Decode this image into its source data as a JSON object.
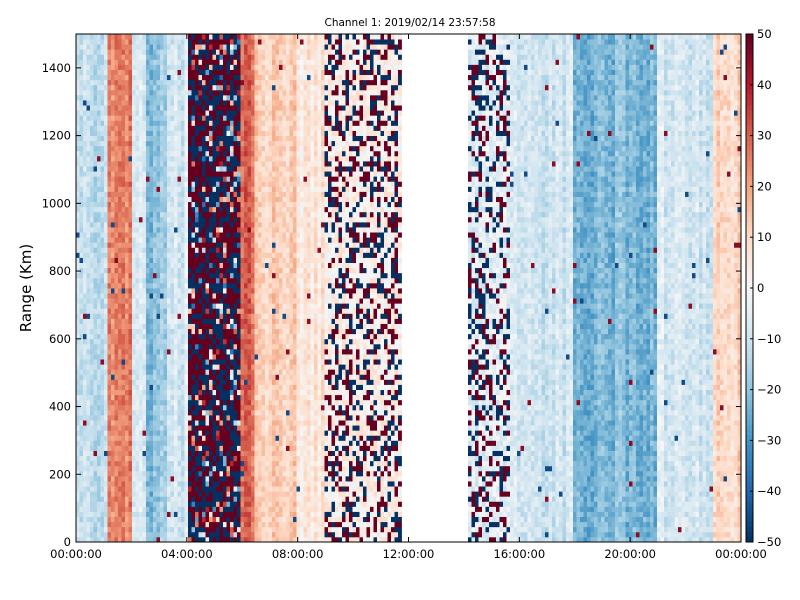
{
  "chart_data": {
    "type": "heatmap",
    "title": "Channel 1: 2019/02/14 23:57:58",
    "xlabel": "",
    "ylabel": "Range (Km)",
    "x_tick_labels": [
      "00:00:00",
      "04:00:00",
      "08:00:00",
      "12:00:00",
      "16:00:00",
      "20:00:00",
      "00:00:00"
    ],
    "x_ticks_hours": [
      0,
      4,
      8,
      12,
      16,
      20,
      24
    ],
    "xlim_hours": [
      0,
      24
    ],
    "y_ticks": [
      0,
      200,
      400,
      600,
      800,
      1000,
      1200,
      1400
    ],
    "y_tick_labels": [
      "0",
      "200",
      "400",
      "600",
      "800",
      "1000",
      "1200",
      "1400"
    ],
    "ylim": [
      0,
      1500
    ],
    "colorbar": {
      "colormap": "RdBu_r",
      "range": [
        -50,
        50
      ],
      "ticks": [
        50,
        40,
        30,
        20,
        10,
        0,
        -10,
        -20,
        -30,
        -40,
        -50
      ],
      "tick_labels": [
        "50",
        "40",
        "30",
        "20",
        "10",
        "0",
        "−10",
        "−20",
        "−30",
        "−40",
        "−50"
      ]
    },
    "grid": false,
    "no_data_interval_hours": [
      11.7,
      14.1
    ],
    "segments": [
      {
        "start_hour": 0.0,
        "end_hour": 1.1,
        "pattern": "smooth",
        "value": -12
      },
      {
        "start_hour": 1.1,
        "end_hour": 2.0,
        "pattern": "smooth",
        "value": 25
      },
      {
        "start_hour": 2.0,
        "end_hour": 2.5,
        "pattern": "smooth",
        "value": -5
      },
      {
        "start_hour": 2.5,
        "end_hour": 3.3,
        "pattern": "smooth",
        "value": -20
      },
      {
        "start_hour": 3.3,
        "end_hour": 4.0,
        "pattern": "smooth",
        "value": -8
      },
      {
        "start_hour": 4.0,
        "end_hour": 6.0,
        "pattern": "noise",
        "value": 0
      },
      {
        "start_hour": 6.0,
        "end_hour": 6.5,
        "pattern": "smooth",
        "value": 28
      },
      {
        "start_hour": 6.5,
        "end_hour": 8.0,
        "pattern": "smooth",
        "value": 12
      },
      {
        "start_hour": 8.0,
        "end_hour": 9.0,
        "pattern": "smooth",
        "value": 6
      },
      {
        "start_hour": 9.0,
        "end_hour": 11.7,
        "pattern": "sparse-noise",
        "value": 3
      },
      {
        "start_hour": 14.1,
        "end_hour": 15.7,
        "pattern": "sparse-noise",
        "value": -5
      },
      {
        "start_hour": 15.7,
        "end_hour": 18.0,
        "pattern": "smooth",
        "value": -10
      },
      {
        "start_hour": 18.0,
        "end_hour": 21.0,
        "pattern": "smooth",
        "value": -22
      },
      {
        "start_hour": 21.0,
        "end_hour": 23.0,
        "pattern": "smooth",
        "value": -8
      },
      {
        "start_hour": 23.0,
        "end_hour": 24.0,
        "pattern": "smooth",
        "value": 10
      }
    ]
  }
}
